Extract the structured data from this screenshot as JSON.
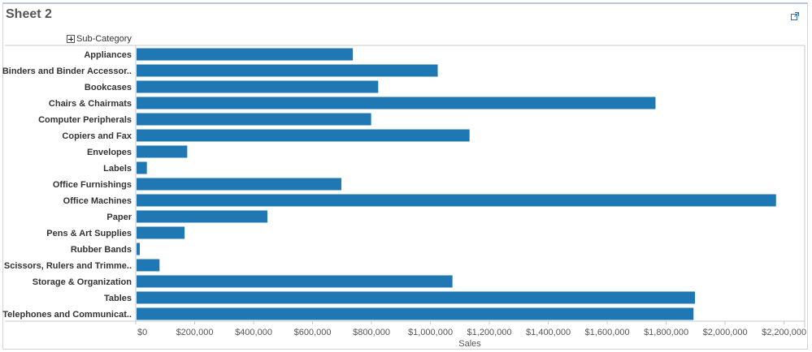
{
  "sheet": {
    "title": "Sheet 2",
    "column_header": "Sub-Category"
  },
  "colors": {
    "bar": "#1f77b4",
    "axis": "#c8c8c8",
    "label": "#333333"
  },
  "chart_data": {
    "type": "bar",
    "orientation": "horizontal",
    "categories": [
      "Appliances",
      "Binders and Binder Accessor..",
      "Bookcases",
      "Chairs & Chairmats",
      "Computer Peripherals",
      "Copiers and Fax",
      "Envelopes",
      "Labels",
      "Office Furnishings",
      "Office Machines",
      "Paper",
      "Pens & Art Supplies",
      "Rubber Bands",
      "Scissors, Rulers and Trimme..",
      "Storage & Organization",
      "Tables",
      "Telephones and Communicat.."
    ],
    "values": [
      734000,
      1022000,
      820000,
      1761000,
      796000,
      1130000,
      172000,
      35000,
      695000,
      2170000,
      444000,
      163000,
      11000,
      78000,
      1072000,
      1895000,
      1890000
    ],
    "xlabel": "Sales",
    "ylabel": "",
    "xlim": [
      0,
      2270000
    ],
    "x_ticks": [
      0,
      200000,
      400000,
      600000,
      800000,
      1000000,
      1200000,
      1400000,
      1600000,
      1800000,
      2000000,
      2200000
    ],
    "x_tick_labels": [
      "$0",
      "$200,000",
      "$400,000",
      "$600,000",
      "$800,000",
      "$1,000,000",
      "$1,200,000",
      "$1,400,000",
      "$1,600,000",
      "$1,800,000",
      "$2,000,000",
      "$2,200,000"
    ],
    "grid": false,
    "legend": "none"
  }
}
